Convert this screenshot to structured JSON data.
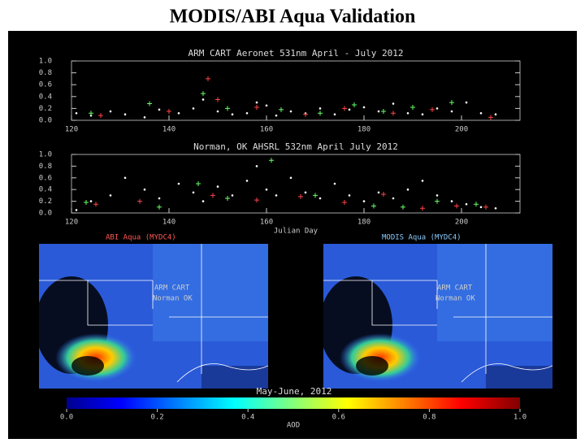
{
  "title": "MODIS/ABI Aqua Validation",
  "chart_data": [
    {
      "type": "scatter",
      "title": "ARM CART Aeronet 531nm April - July 2012",
      "xlim": [
        120,
        212
      ],
      "xticks": [
        120,
        140,
        160,
        180,
        200
      ],
      "ylim": [
        0,
        1
      ],
      "yticks": [
        {
          "value": 0,
          "label": "0.0"
        },
        0.2,
        0.4,
        0.6,
        0.8,
        {
          "value": 1,
          "label": "1.0"
        }
      ],
      "series": [
        {
          "color": "#ffffff",
          "marker": "dot",
          "x": [
            121,
            124,
            128,
            131,
            135,
            138,
            142,
            145,
            147,
            150,
            153,
            156,
            158,
            160,
            162,
            165,
            168,
            171,
            174,
            177,
            180,
            183,
            186,
            189,
            192,
            195,
            198,
            201,
            204,
            207
          ],
          "values": [
            0.12,
            0.08,
            0.15,
            0.1,
            0.05,
            0.18,
            0.12,
            0.2,
            0.35,
            0.15,
            0.1,
            0.12,
            0.3,
            0.25,
            0.08,
            0.15,
            0.12,
            0.2,
            0.1,
            0.18,
            0.22,
            0.15,
            0.28,
            0.12,
            0.1,
            0.2,
            0.15,
            0.3,
            0.12,
            0.1
          ]
        },
        {
          "color": "#66ff66",
          "marker": "plus",
          "x": [
            124,
            136,
            147,
            152,
            163,
            171,
            178,
            184,
            190,
            198
          ],
          "values": [
            0.12,
            0.28,
            0.45,
            0.2,
            0.18,
            0.12,
            0.26,
            0.15,
            0.22,
            0.3
          ]
        },
        {
          "color": "#ff4444",
          "marker": "plus",
          "x": [
            126,
            140,
            148,
            150,
            158,
            168,
            176,
            186,
            194,
            206
          ],
          "values": [
            0.08,
            0.15,
            0.7,
            0.35,
            0.22,
            0.1,
            0.2,
            0.12,
            0.18,
            0.05
          ]
        }
      ]
    },
    {
      "type": "scatter",
      "title": "Norman, OK AHSRL 532nm April July 2012",
      "xlabel": "Julian Day",
      "xlim": [
        120,
        212
      ],
      "xticks": [
        120,
        140,
        160,
        180,
        200
      ],
      "ylim": [
        0,
        1
      ],
      "yticks": [
        {
          "value": 0,
          "label": "0.0"
        },
        0.2,
        0.4,
        0.6,
        0.8,
        {
          "value": 1,
          "label": "1.0"
        }
      ],
      "series": [
        {
          "color": "#ffffff",
          "marker": "dot",
          "x": [
            121,
            124,
            128,
            131,
            135,
            138,
            142,
            145,
            147,
            150,
            153,
            156,
            158,
            160,
            162,
            165,
            168,
            171,
            174,
            177,
            180,
            183,
            186,
            189,
            192,
            195,
            198,
            201,
            204,
            207
          ],
          "values": [
            0.05,
            0.2,
            0.3,
            0.6,
            0.4,
            0.25,
            0.5,
            0.35,
            0.2,
            0.45,
            0.3,
            0.55,
            0.8,
            0.4,
            0.3,
            0.6,
            0.35,
            0.25,
            0.5,
            0.3,
            0.2,
            0.35,
            0.25,
            0.4,
            0.55,
            0.3,
            0.2,
            0.15,
            0.1,
            0.08
          ]
        },
        {
          "color": "#66ff66",
          "marker": "plus",
          "x": [
            123,
            138,
            146,
            152,
            161,
            170,
            182,
            188,
            195,
            203
          ],
          "values": [
            0.18,
            0.1,
            0.5,
            0.25,
            0.9,
            0.3,
            0.12,
            0.1,
            0.2,
            0.15
          ]
        },
        {
          "color": "#ff4444",
          "marker": "plus",
          "x": [
            125,
            134,
            149,
            158,
            167,
            176,
            184,
            192,
            199,
            205
          ],
          "values": [
            0.15,
            0.2,
            0.3,
            0.22,
            0.28,
            0.18,
            0.32,
            0.08,
            0.12,
            0.1
          ]
        }
      ]
    }
  ],
  "maps": [
    {
      "title": "ABI Aqua (MYDC4)",
      "site": "ARM CART",
      "site2": "Norman OK"
    },
    {
      "title": "MODIS Aqua (MYDC4)",
      "site": "ARM CART",
      "site2": "Norman OK"
    }
  ],
  "period": "May-June, 2012",
  "colorbar": {
    "label": "AOD",
    "lim": [
      0,
      1
    ],
    "ticks": [
      {
        "value": 0,
        "label": "0.0"
      },
      0.2,
      0.4,
      0.6,
      0.8,
      {
        "value": 1,
        "label": "1.0"
      }
    ]
  }
}
